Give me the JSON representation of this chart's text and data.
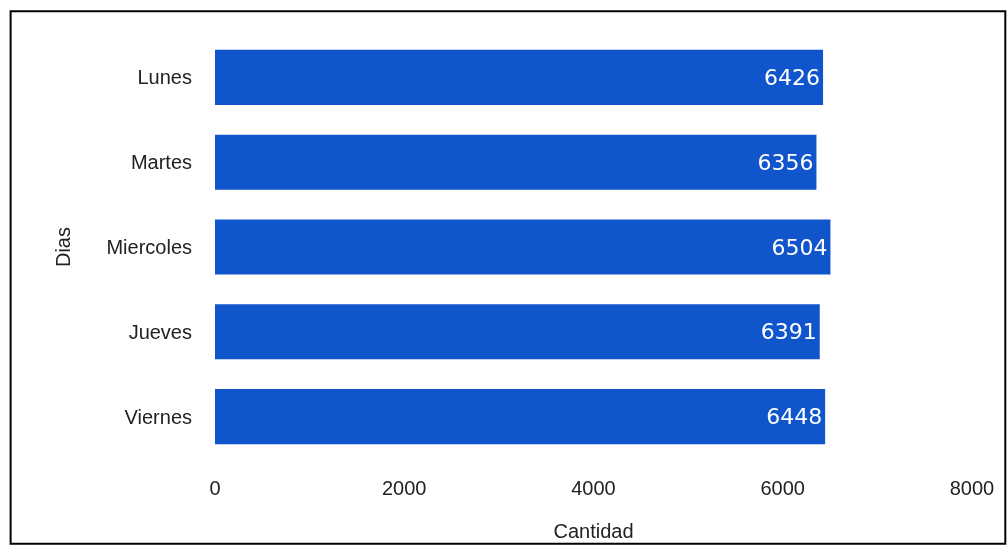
{
  "chart_data": {
    "type": "bar",
    "orientation": "horizontal",
    "xlabel": "Cantidad",
    "ylabel": "Dias",
    "categories": [
      "Lunes",
      "Martes",
      "Miercoles",
      "Jueves",
      "Viernes"
    ],
    "values": [
      6426,
      6356,
      6504,
      6391,
      6448
    ],
    "color": "#1155cc",
    "xlim": [
      0,
      8000
    ],
    "xticks": [
      0,
      2000,
      4000,
      6000,
      8000
    ],
    "data_labels": true
  }
}
